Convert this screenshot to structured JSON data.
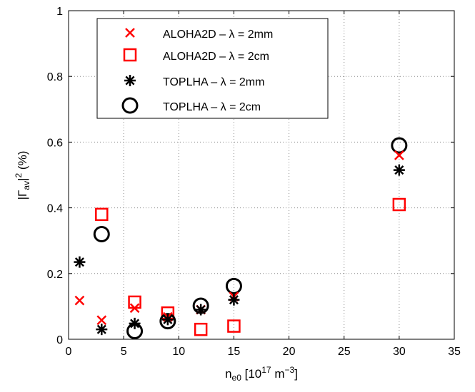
{
  "chart_data": {
    "type": "scatter",
    "title": "",
    "xlabel": {
      "base": "n",
      "sub": "e0",
      "bracket_open": " [10",
      "sup": "17",
      "unit": " m",
      "unit_sup": "−3",
      "bracket_close": "]"
    },
    "ylabel": {
      "open": "|Γ",
      "sub": "av",
      "close": "|",
      "sup": "2",
      "unit": " (%)"
    },
    "xlim": [
      0,
      35
    ],
    "ylim": [
      0,
      1
    ],
    "xticks": [
      "0",
      "5",
      "10",
      "15",
      "20",
      "25",
      "30",
      "35"
    ],
    "yticks": [
      "0",
      "0.2",
      "0.4",
      "0.6",
      "0.8",
      "1"
    ],
    "xtick_values": [
      0,
      5,
      10,
      15,
      20,
      25,
      30,
      35
    ],
    "ytick_values": [
      0,
      0.2,
      0.4,
      0.6,
      0.8,
      1
    ],
    "grid": true,
    "legend_position": "top-left",
    "series": [
      {
        "name": "ALOHA2D  – λ = 2mm",
        "marker": "x",
        "color": "#ff0000",
        "x": [
          1,
          3,
          6,
          9,
          12,
          15,
          30
        ],
        "y": [
          0.118,
          0.058,
          0.095,
          0.068,
          0.09,
          0.13,
          0.56
        ]
      },
      {
        "name": "ALOHA2D  – λ = 2cm",
        "marker": "square",
        "color": "#ff0000",
        "x": [
          3,
          6,
          9,
          12,
          15,
          30
        ],
        "y": [
          0.38,
          0.113,
          0.08,
          0.03,
          0.04,
          0.41
        ]
      },
      {
        "name": "TOPLHA   – λ = 2mm",
        "marker": "asterisk",
        "color": "#000000",
        "x": [
          1,
          3,
          6,
          9,
          12,
          15,
          30
        ],
        "y": [
          0.235,
          0.03,
          0.048,
          0.06,
          0.09,
          0.12,
          0.515
        ]
      },
      {
        "name": "TOPLHA   – λ = 2cm",
        "marker": "circle",
        "color": "#000000",
        "x": [
          3,
          6,
          9,
          12,
          15,
          30
        ],
        "y": [
          0.32,
          0.025,
          0.055,
          0.102,
          0.162,
          0.59
        ]
      }
    ]
  }
}
